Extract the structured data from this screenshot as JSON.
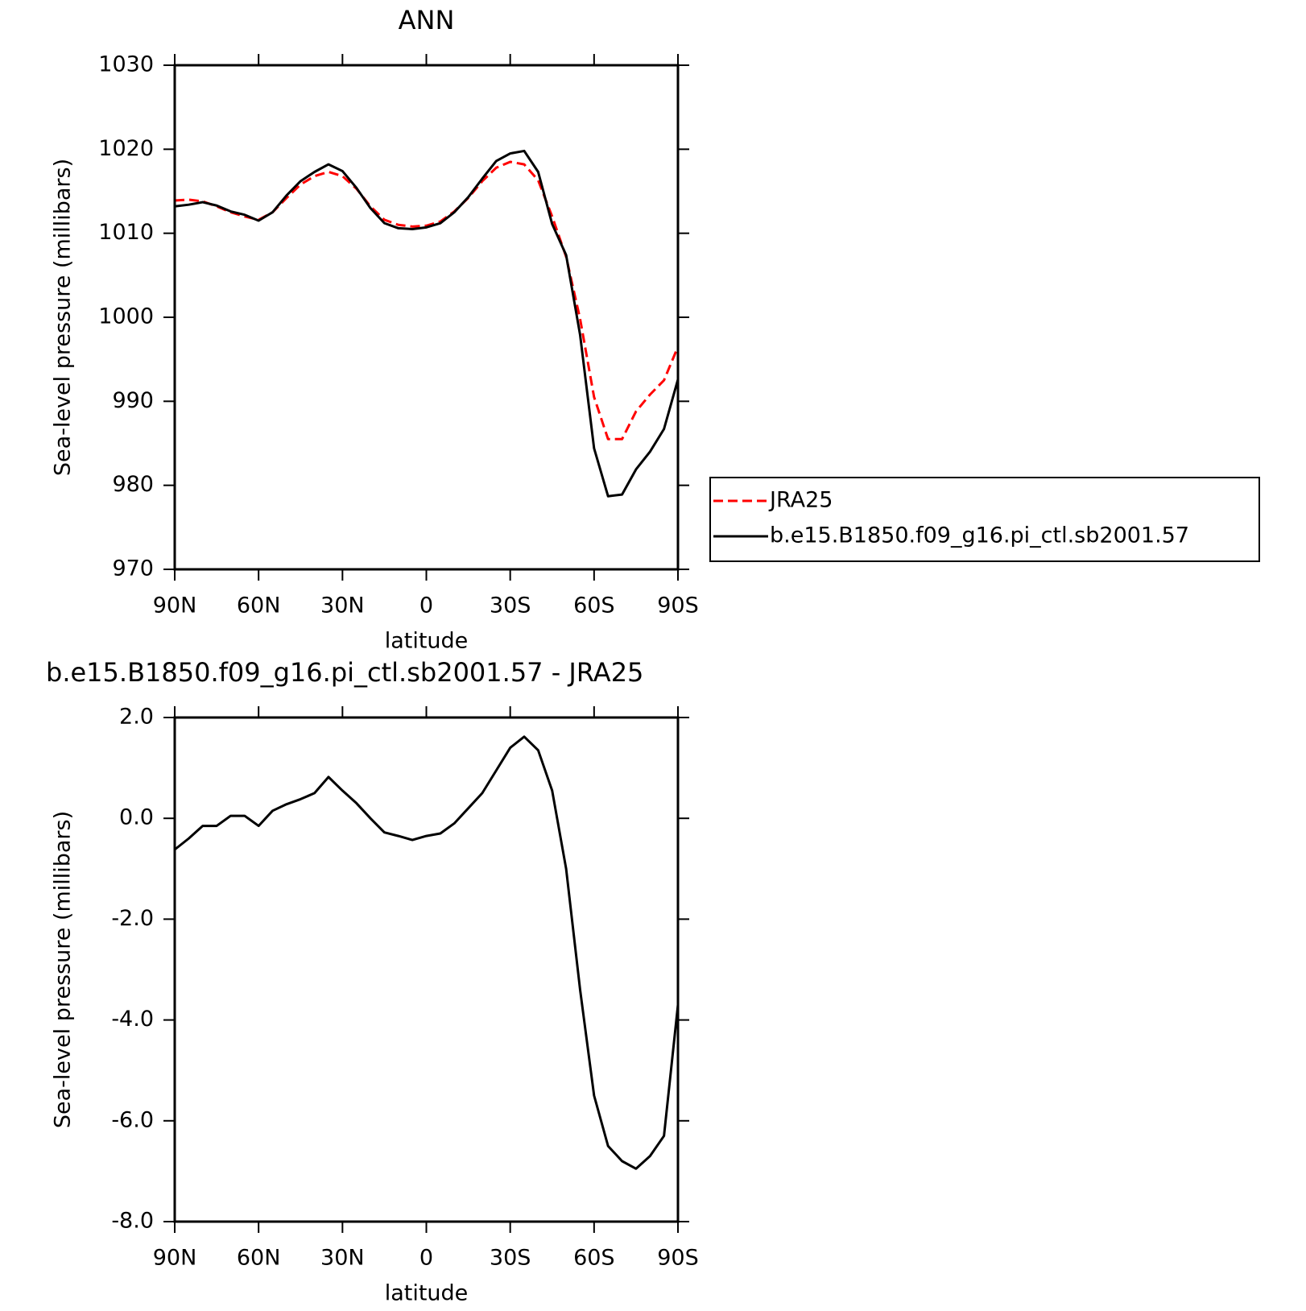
{
  "chart_data": [
    {
      "type": "line",
      "title": "ANN",
      "x_label": "latitude",
      "y_label": "Sea-level pressure (millibars)",
      "x": [
        90,
        85,
        80,
        75,
        70,
        65,
        60,
        55,
        50,
        45,
        40,
        35,
        30,
        25,
        20,
        15,
        10,
        5,
        0,
        -5,
        -10,
        -15,
        -20,
        -25,
        -30,
        -35,
        -40,
        -45,
        -50,
        -55,
        -60,
        -65,
        -70,
        -75,
        -80,
        -85,
        -90
      ],
      "xlim": [
        90,
        -90
      ],
      "xticks": [
        {
          "value": 90,
          "label": "90N"
        },
        {
          "value": 60,
          "label": "60N"
        },
        {
          "value": 30,
          "label": "30N"
        },
        0,
        {
          "value": -30,
          "label": "30S"
        },
        {
          "value": -60,
          "label": "60S"
        },
        {
          "value": -90,
          "label": "90S"
        }
      ],
      "ylim": [
        970,
        1030
      ],
      "yticks": [
        970,
        980,
        990,
        1000,
        1010,
        1020,
        1030
      ],
      "legend": "outside-right",
      "series": [
        {
          "name": "JRA25",
          "color": "#ff0000",
          "style": "dashed",
          "values": [
            1013.9,
            1014.0,
            1013.8,
            1013.2,
            1012.5,
            1012.0,
            1011.6,
            1012.5,
            1014.2,
            1015.8,
            1016.8,
            1017.3,
            1016.8,
            1015.3,
            1013.2,
            1011.6,
            1011.0,
            1010.8,
            1010.9,
            1011.4,
            1012.6,
            1014.2,
            1016.2,
            1017.8,
            1018.5,
            1018.2,
            1016.3,
            1012.0,
            1007.2,
            999.8,
            990.5,
            985.5,
            985.5,
            988.8,
            990.8,
            992.5,
            996.5
          ]
        },
        {
          "name": "b.e15.B1850.f09_g16.pi_ctl.sb2001.57",
          "color": "#000000",
          "style": "solid",
          "values": [
            1013.2,
            1013.4,
            1013.7,
            1013.3,
            1012.6,
            1012.2,
            1011.5,
            1012.5,
            1014.5,
            1016.2,
            1017.3,
            1018.2,
            1017.4,
            1015.4,
            1013.0,
            1011.2,
            1010.6,
            1010.5,
            1010.7,
            1011.2,
            1012.5,
            1014.3,
            1016.5,
            1018.6,
            1019.5,
            1019.8,
            1017.3,
            1011.1,
            1007.4,
            997.9,
            984.4,
            978.7,
            978.9,
            981.9,
            984.0,
            986.7,
            992.6
          ]
        }
      ]
    },
    {
      "type": "line",
      "title": "b.e15.B1850.f09_g16.pi_ctl.sb2001.57 - JRA25",
      "x_label": "latitude",
      "y_label": "Sea-level pressure (millibars)",
      "x": [
        90,
        85,
        80,
        75,
        70,
        65,
        60,
        55,
        50,
        45,
        40,
        35,
        30,
        25,
        20,
        15,
        10,
        5,
        0,
        -5,
        -10,
        -15,
        -20,
        -25,
        -30,
        -35,
        -40,
        -45,
        -50,
        -55,
        -60,
        -65,
        -70,
        -75,
        -80,
        -85,
        -90
      ],
      "xlim": [
        90,
        -90
      ],
      "xticks": [
        {
          "value": 90,
          "label": "90N"
        },
        {
          "value": 60,
          "label": "60N"
        },
        {
          "value": 30,
          "label": "30N"
        },
        0,
        {
          "value": -30,
          "label": "30S"
        },
        {
          "value": -60,
          "label": "60S"
        },
        {
          "value": -90,
          "label": "90S"
        }
      ],
      "ylim": [
        -8,
        2
      ],
      "yticks": [
        {
          "value": -8,
          "label": "-8.0"
        },
        {
          "value": -6,
          "label": "-6.0"
        },
        {
          "value": -4,
          "label": "-4.0"
        },
        {
          "value": -2,
          "label": "-2.0"
        },
        {
          "value": 0,
          "label": "0.0"
        },
        {
          "value": 2,
          "label": "2.0"
        }
      ],
      "series": [
        {
          "color": "#000000",
          "style": "solid",
          "values": [
            -0.62,
            -0.4,
            -0.15,
            -0.15,
            0.05,
            0.05,
            -0.15,
            0.15,
            0.28,
            0.38,
            0.5,
            0.82,
            0.55,
            0.3,
            0.0,
            -0.28,
            -0.35,
            -0.43,
            -0.35,
            -0.3,
            -0.1,
            0.2,
            0.5,
            0.95,
            1.4,
            1.62,
            1.35,
            0.55,
            -1.0,
            -3.4,
            -5.5,
            -6.5,
            -6.8,
            -6.95,
            -6.7,
            -6.3,
            -3.7
          ]
        }
      ]
    }
  ]
}
